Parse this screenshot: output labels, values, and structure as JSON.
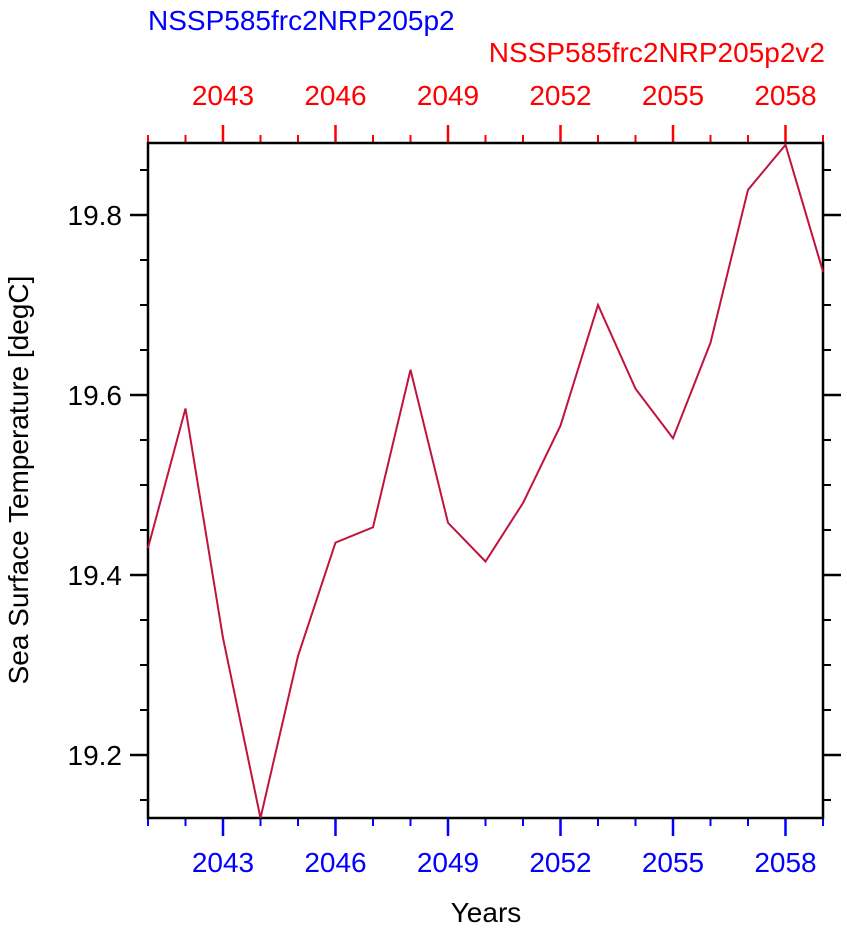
{
  "chart_data": {
    "type": "line",
    "title_left": "NSSP585frc2NRP205p2",
    "title_right": "NSSP585frc2NRP205p2v2",
    "xlabel": "Years",
    "ylabel": "Sea Surface Temperature [degC]",
    "xlim": [
      2041,
      2059
    ],
    "ylim": [
      19.13,
      19.88
    ],
    "x_ticks": [
      2043,
      2046,
      2049,
      2052,
      2055,
      2058
    ],
    "x_tick_labels": [
      "2043",
      "2046",
      "2049",
      "2052",
      "2055",
      "2058"
    ],
    "y_ticks": [
      19.2,
      19.4,
      19.6,
      19.8
    ],
    "y_tick_labels": [
      "19.2",
      "19.4",
      "19.6",
      "19.8"
    ],
    "series": [
      {
        "color": "#c0143c",
        "x": [
          2041,
          2042,
          2043,
          2044,
          2045,
          2046,
          2047,
          2048,
          2049,
          2050,
          2051,
          2052,
          2053,
          2054,
          2055,
          2056,
          2057,
          2058,
          2059
        ],
        "y": [
          19.43,
          19.585,
          19.33,
          19.13,
          19.31,
          19.436,
          19.453,
          19.628,
          19.458,
          19.415,
          19.48,
          19.566,
          19.7,
          19.607,
          19.552,
          19.658,
          19.828,
          19.878,
          19.737
        ]
      }
    ],
    "colors": {
      "bottom_axis": "#0000ff",
      "top_axis": "#ff0000",
      "line": "#c0143c",
      "frame": "#000000"
    },
    "grid": false
  }
}
